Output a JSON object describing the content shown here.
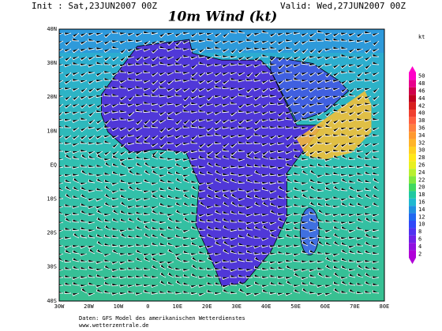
{
  "header": {
    "init": "Init : Sat,23JUN2007 00Z",
    "title": "10m Wind (kt)",
    "valid": "Valid: Wed,27JUN2007 00Z",
    "unit": "kt"
  },
  "axes": {
    "lat_labels": [
      "40N",
      "30N",
      "20N",
      "10N",
      "EQ",
      "10S",
      "20S",
      "30S",
      "40S"
    ],
    "lon_labels": [
      "30W",
      "20W",
      "10W",
      "0",
      "10E",
      "20E",
      "30E",
      "40E",
      "50E",
      "60E",
      "70E",
      "80E"
    ]
  },
  "colorbar": {
    "levels": [
      50,
      48,
      46,
      44,
      42,
      40,
      38,
      36,
      34,
      32,
      30,
      28,
      26,
      24,
      22,
      20,
      18,
      16,
      14,
      12,
      10,
      8,
      6,
      4,
      2
    ],
    "colors": [
      "#ff00c8",
      "#e8008c",
      "#d0004a",
      "#c00020",
      "#d82020",
      "#f04030",
      "#ff6040",
      "#ff8040",
      "#ff9a30",
      "#ffb428",
      "#ffd020",
      "#ffe818",
      "#e8f020",
      "#b8f030",
      "#80e840",
      "#40d860",
      "#20c8a0",
      "#20b8d0",
      "#2090e0",
      "#2068f0",
      "#3048f8",
      "#5030f0",
      "#7020e8",
      "#9010e0",
      "#b000d8"
    ]
  },
  "footer": {
    "line1": "Daten: GFS Model des amerikanischen Wetterdienstes",
    "line2": "www.wetterzentrale.de"
  }
}
